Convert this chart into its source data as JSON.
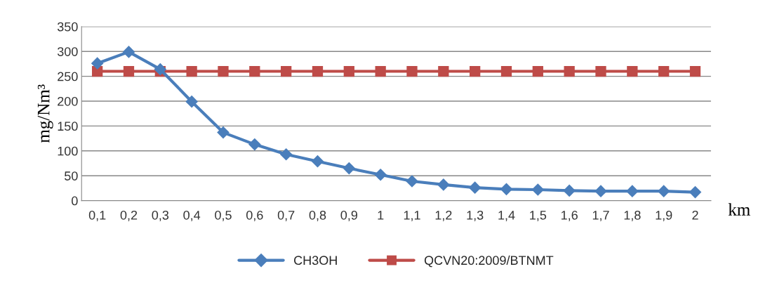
{
  "chart_data": {
    "type": "line",
    "ylabel": "mg/Nm³",
    "xlabel": "km",
    "categories": [
      "0,1",
      "0,2",
      "0,3",
      "0,4",
      "0,5",
      "0,6",
      "0,7",
      "0,8",
      "0,9",
      "1",
      "1,1",
      "1,2",
      "1,3",
      "1,4",
      "1,5",
      "1,6",
      "1,7",
      "1,8",
      "1,9",
      "2"
    ],
    "series": [
      {
        "name": "CH3OH",
        "color": "#4a7ebb",
        "marker": "diamond",
        "values": [
          276,
          299,
          264,
          199,
          137,
          113,
          93,
          79,
          65,
          52,
          39,
          32,
          26,
          23,
          22,
          20,
          19,
          19,
          19,
          17
        ]
      },
      {
        "name": "QCVN20:2009/BTNMT",
        "color": "#be4b48",
        "marker": "square",
        "values": [
          260,
          260,
          260,
          260,
          260,
          260,
          260,
          260,
          260,
          260,
          260,
          260,
          260,
          260,
          260,
          260,
          260,
          260,
          260,
          260
        ]
      }
    ],
    "ylim": [
      0,
      350
    ],
    "yticks": [
      0,
      50,
      100,
      150,
      200,
      250,
      300,
      350
    ],
    "grid": "y",
    "legend": "bottom",
    "line_style": "solid"
  }
}
